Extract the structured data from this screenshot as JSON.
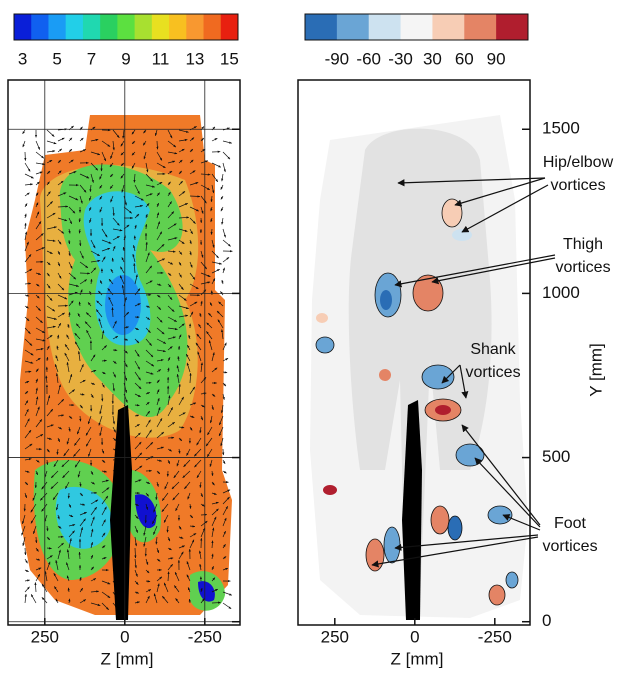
{
  "chart_data": [
    {
      "type": "contour",
      "colorbar": {
        "clim": [
          2.5,
          15.5
        ],
        "ticks": [
          3,
          5,
          7,
          9,
          11,
          13,
          15
        ],
        "colors": [
          "#0a1fd8",
          "#1060f0",
          "#1a9cf5",
          "#22cfe8",
          "#20d8b0",
          "#2ad060",
          "#5ce040",
          "#a8e030",
          "#e8e020",
          "#f8c020",
          "#f89830",
          "#f06a20",
          "#e82010"
        ]
      },
      "xlim": [
        365,
        -360
      ],
      "xticks": [
        250,
        0,
        -250
      ],
      "xlabel": "Z [mm]",
      "ylim": [
        -10,
        1650
      ],
      "yticks": [
        0,
        500,
        1000,
        1500
      ],
      "grid": true
    },
    {
      "type": "contour",
      "colorbar": {
        "ticks": [
          -90,
          -60,
          -30,
          30,
          60,
          90
        ],
        "colors": [
          "#2a6db5",
          "#6aa5d5",
          "#cde2f0",
          "#f5f5f5",
          "#f7cdb5",
          "#e48465",
          "#b01e2e"
        ]
      },
      "xlim": [
        365,
        -360
      ],
      "xticks": [
        250,
        0,
        -250
      ],
      "xlabel": "Z [mm]",
      "ylim": [
        -10,
        1650
      ],
      "yticks": [
        0,
        500,
        1000,
        1500
      ],
      "ylabel": "Y [mm]",
      "grid": false,
      "annotations": [
        {
          "lines": [
            "Hip/elbow",
            "vortices"
          ]
        },
        {
          "lines": [
            "Thigh",
            "vortices"
          ]
        },
        {
          "lines": [
            "Shank",
            "vortices"
          ]
        },
        {
          "lines": [
            "Foot",
            "vortices"
          ]
        }
      ]
    }
  ]
}
